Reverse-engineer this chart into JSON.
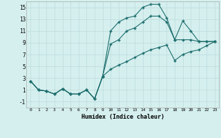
{
  "xlabel": "Humidex (Indice chaleur)",
  "background_color": "#d4efee",
  "grid_color": "#c0dede",
  "line_color": "#1a6b6b",
  "xlim": [
    -0.5,
    23.5
  ],
  "ylim": [
    -2,
    16
  ],
  "xticks": [
    0,
    1,
    2,
    3,
    4,
    5,
    6,
    7,
    8,
    9,
    10,
    11,
    12,
    13,
    14,
    15,
    16,
    17,
    18,
    19,
    20,
    21,
    22,
    23
  ],
  "yticks": [
    -1,
    1,
    3,
    5,
    7,
    9,
    11,
    13,
    15
  ],
  "series1_x": [
    0,
    1,
    2,
    3,
    4,
    5,
    6,
    7,
    8,
    9,
    10,
    11,
    12,
    13,
    14,
    15,
    16,
    17,
    18,
    19,
    20,
    21,
    22,
    23
  ],
  "series1_y": [
    2.5,
    1.0,
    0.8,
    0.3,
    1.2,
    0.3,
    0.3,
    1.0,
    -0.5,
    3.3,
    11.0,
    12.5,
    13.2,
    13.5,
    15.0,
    15.5,
    15.5,
    13.2,
    9.5,
    12.7,
    11.0,
    9.2,
    9.2,
    9.2
  ],
  "series2_x": [
    0,
    1,
    2,
    3,
    4,
    5,
    6,
    7,
    8,
    9,
    10,
    11,
    12,
    13,
    14,
    15,
    16,
    17,
    18,
    19,
    20,
    21,
    22,
    23
  ],
  "series2_y": [
    2.5,
    1.0,
    0.8,
    0.3,
    1.2,
    0.3,
    0.3,
    1.0,
    -0.5,
    3.3,
    8.8,
    9.5,
    11.0,
    11.5,
    12.5,
    13.5,
    13.5,
    12.5,
    9.5,
    9.5,
    9.5,
    9.2,
    9.2,
    9.2
  ],
  "series3_x": [
    0,
    1,
    2,
    3,
    4,
    5,
    6,
    7,
    8,
    9,
    10,
    11,
    12,
    13,
    14,
    15,
    16,
    17,
    18,
    19,
    20,
    21,
    22,
    23
  ],
  "series3_y": [
    2.5,
    1.0,
    0.8,
    0.3,
    1.2,
    0.3,
    0.3,
    1.0,
    -0.5,
    3.3,
    4.5,
    5.2,
    5.8,
    6.5,
    7.2,
    7.8,
    8.2,
    8.6,
    6.0,
    7.0,
    7.5,
    7.8,
    8.5,
    9.2
  ]
}
